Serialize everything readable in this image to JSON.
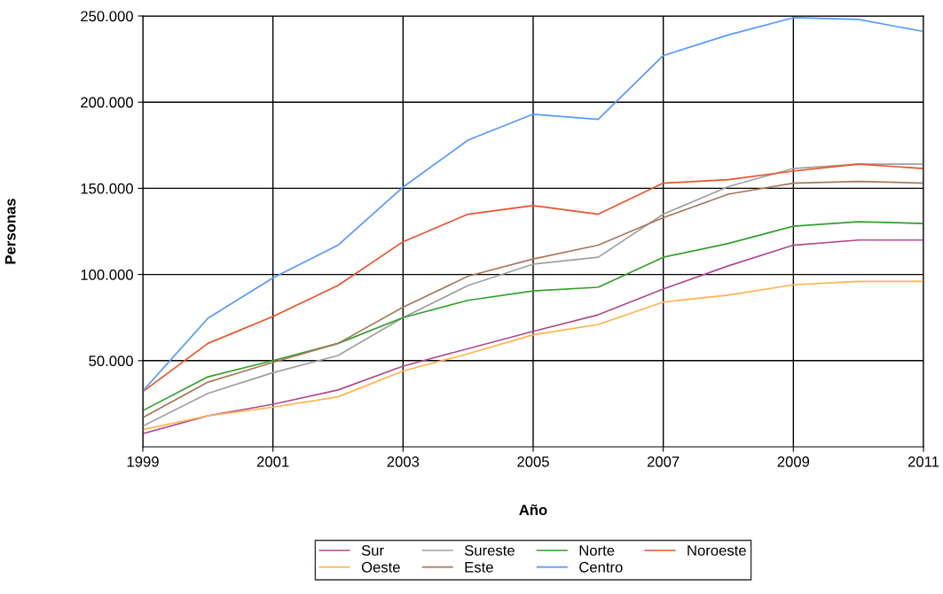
{
  "chart_data": {
    "type": "line",
    "xlabel": "Año",
    "ylabel": "Personas",
    "x": [
      1999,
      2000,
      2001,
      2002,
      2003,
      2004,
      2005,
      2006,
      2007,
      2008,
      2009,
      2010,
      2011
    ],
    "xlim": [
      1999,
      2011
    ],
    "xticks": [
      1999,
      2001,
      2003,
      2005,
      2007,
      2009,
      2011
    ],
    "ylim": [
      0,
      250000
    ],
    "yticks": [
      {
        "value": 50000,
        "label": "50.000"
      },
      {
        "value": 100000,
        "label": "100.000"
      },
      {
        "value": 150000,
        "label": "150.000"
      },
      {
        "value": 200000,
        "label": "200.000"
      },
      {
        "value": 250000,
        "label": "250.000"
      }
    ],
    "grid": true,
    "legend": "bottom",
    "marker": "none",
    "line_style": "solid",
    "series": [
      {
        "name": "Sur",
        "color": "#b04a8c",
        "values": [
          7700,
          18000,
          24700,
          33000,
          46800,
          57000,
          67000,
          76600,
          91600,
          105000,
          117000,
          120000,
          120000
        ]
      },
      {
        "name": "Sureste",
        "color": "#a0a0a0",
        "values": [
          12000,
          31000,
          43000,
          53000,
          75000,
          93600,
          106000,
          110000,
          135000,
          151000,
          161500,
          164000,
          164000
        ]
      },
      {
        "name": "Norte",
        "color": "#33a02c",
        "values": [
          21000,
          40600,
          50000,
          60000,
          75000,
          85000,
          90500,
          92600,
          110000,
          118000,
          128000,
          130600,
          129600
        ]
      },
      {
        "name": "Noroeste",
        "color": "#e8552b",
        "values": [
          32000,
          60000,
          75600,
          93600,
          119000,
          135000,
          140000,
          135000,
          153000,
          155000,
          160000,
          164000,
          161500
        ]
      },
      {
        "name": "Oeste",
        "color": "#ffb34d",
        "values": [
          10000,
          18000,
          23000,
          29000,
          44000,
          54000,
          65000,
          71000,
          84000,
          88000,
          94000,
          96000,
          96000
        ]
      },
      {
        "name": "Este",
        "color": "#a8785a",
        "values": [
          17000,
          37500,
          49000,
          60000,
          81000,
          99000,
          109000,
          117000,
          133000,
          146600,
          153000,
          154000,
          153000
        ]
      },
      {
        "name": "Centro",
        "color": "#5599ff",
        "values": [
          32400,
          74600,
          98000,
          117000,
          150700,
          178000,
          193000,
          190000,
          227000,
          239000,
          249000,
          248000,
          241000
        ]
      }
    ]
  }
}
